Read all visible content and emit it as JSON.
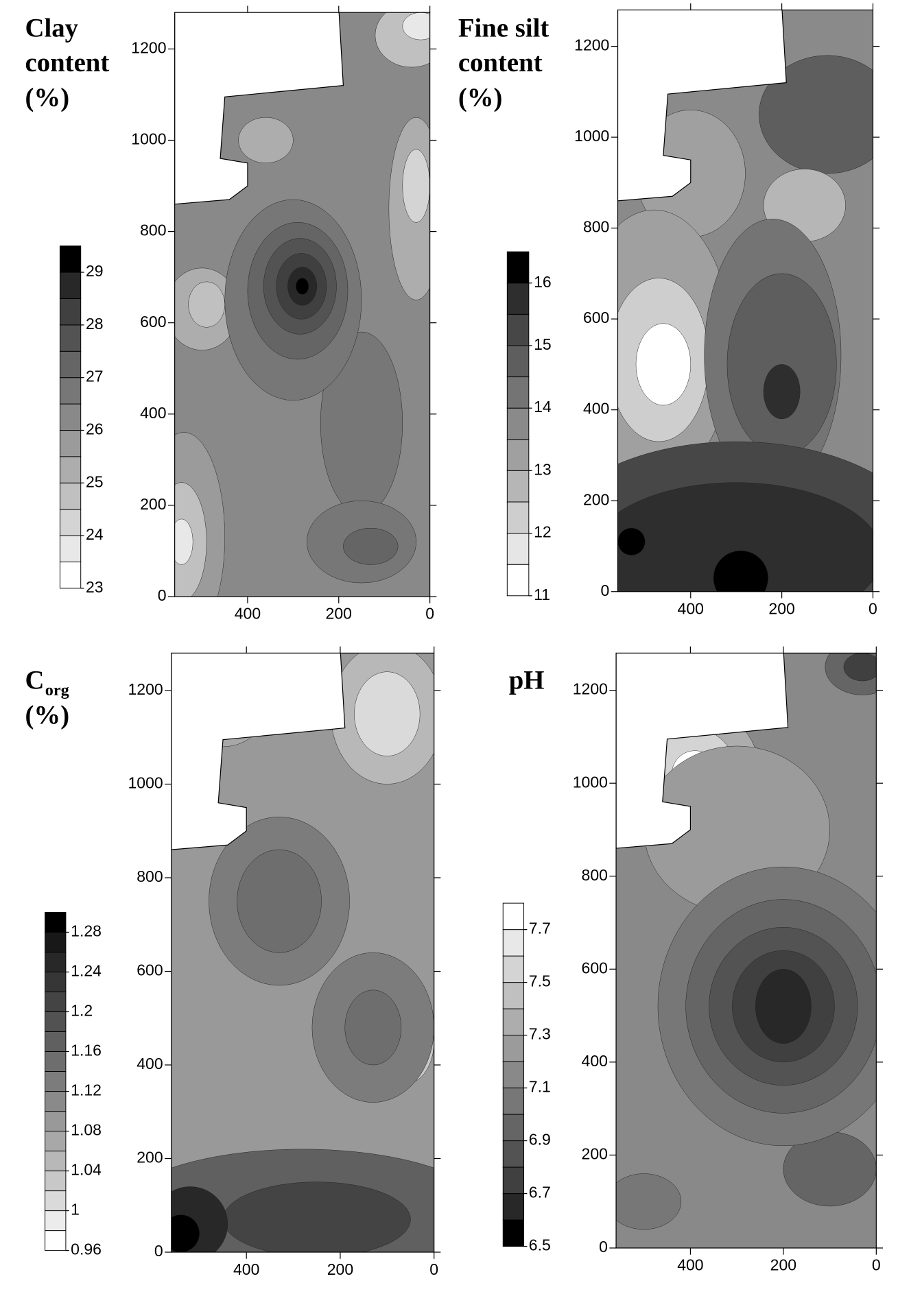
{
  "chart_data": [
    {
      "type": "contour",
      "title_lines": [
        "Clay",
        "content",
        "(%)"
      ],
      "xlim": [
        560,
        0
      ],
      "ylim": [
        0,
        1280
      ],
      "xticks": [
        400,
        200,
        0
      ],
      "yticks": [
        0,
        200,
        400,
        600,
        800,
        1000,
        1200
      ],
      "colorbar": {
        "lim": [
          23,
          29.5
        ],
        "ticks": [
          23,
          24,
          25,
          26,
          27,
          28,
          29
        ],
        "colors": [
          "#ffffff",
          "#e8e8e8",
          "#d4d4d4",
          "#c0c0c0",
          "#adadad",
          "#9b9b9b",
          "#898989",
          "#777777",
          "#656565",
          "#535353",
          "#404040",
          "#282828",
          "#000000"
        ]
      }
    },
    {
      "type": "contour",
      "title_lines": [
        "Fine silt",
        "content",
        "(%)"
      ],
      "xlim": [
        560,
        0
      ],
      "ylim": [
        0,
        1280
      ],
      "xticks": [
        400,
        200,
        0
      ],
      "yticks": [
        0,
        200,
        400,
        600,
        800,
        1000,
        1200
      ],
      "colorbar": {
        "lim": [
          11,
          16.5
        ],
        "ticks": [
          11,
          12,
          13,
          14,
          15,
          16
        ],
        "colors": [
          "#ffffff",
          "#e6e6e6",
          "#cecece",
          "#b6b6b6",
          "#a0a0a0",
          "#8a8a8a",
          "#747474",
          "#5e5e5e",
          "#474747",
          "#2e2e2e",
          "#000000"
        ]
      }
    },
    {
      "type": "contour",
      "title_lines": [
        "C",
        "(%)"
      ],
      "title_subscript": "org",
      "xlim": [
        560,
        0
      ],
      "ylim": [
        0,
        1280
      ],
      "xticks": [
        400,
        200,
        0
      ],
      "yticks": [
        0,
        200,
        400,
        600,
        800,
        1000,
        1200
      ],
      "colorbar": {
        "lim": [
          0.96,
          1.3
        ],
        "ticks": [
          0.96,
          1,
          1.04,
          1.08,
          1.12,
          1.16,
          1.2,
          1.24,
          1.28
        ],
        "colors": [
          "#ffffff",
          "#ececec",
          "#dadada",
          "#c8c8c8",
          "#b8b8b8",
          "#a8a8a8",
          "#999999",
          "#8a8a8a",
          "#7c7c7c",
          "#6e6e6e",
          "#606060",
          "#525252",
          "#444444",
          "#363636",
          "#282828",
          "#181818",
          "#000000"
        ]
      }
    },
    {
      "type": "contour",
      "title_lines": [
        "pH"
      ],
      "xlim": [
        560,
        0
      ],
      "ylim": [
        0,
        1280
      ],
      "xticks": [
        400,
        200,
        0
      ],
      "yticks": [
        0,
        200,
        400,
        600,
        800,
        1000,
        1200
      ],
      "colorbar": {
        "lim": [
          6.5,
          7.8
        ],
        "ticks": [
          6.5,
          6.7,
          6.9,
          7.1,
          7.3,
          7.5,
          7.7
        ],
        "colors": [
          "#000000",
          "#282828",
          "#404040",
          "#535353",
          "#656565",
          "#777777",
          "#898989",
          "#9b9b9b",
          "#adadad",
          "#c0c0c0",
          "#d4d4d4",
          "#e8e8e8",
          "#ffffff"
        ]
      }
    }
  ]
}
